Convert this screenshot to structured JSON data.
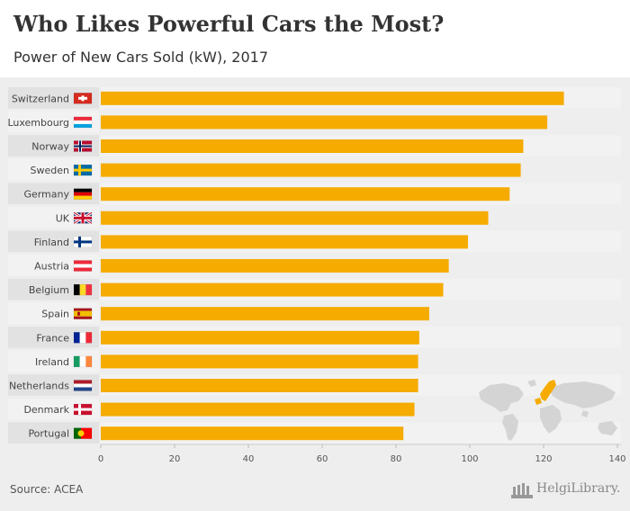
{
  "header": {
    "title": "Who Likes Powerful Cars the Most?",
    "subtitle": "Power of New Cars Sold (kW), 2017"
  },
  "footer": {
    "source": "Source: ACEA",
    "brand": "HelgiLibrary."
  },
  "colors": {
    "bar": "#f5ab00",
    "band_dark": "#e2e2e2",
    "band_light": "#f2f2f2",
    "background": "#eeeeee",
    "map_land": "#d4d4d4",
    "map_highlight": "#f5ab00"
  },
  "icons": {
    "brand_logo": "library-columns-icon",
    "map": "world-map-icon"
  },
  "chart_data": {
    "type": "bar",
    "orientation": "horizontal",
    "title": "Who Likes Powerful Cars the Most?",
    "subtitle": "Power of New Cars Sold (kW), 2017",
    "xlabel": "",
    "ylabel": "",
    "categories": [
      "Switzerland",
      "Luxembourg",
      "Norway",
      "Sweden",
      "Germany",
      "UK",
      "Finland",
      "Austria",
      "Belgium",
      "Spain",
      "France",
      "Ireland",
      "Netherlands",
      "Denmark",
      "Portugal"
    ],
    "values": [
      125.5,
      121,
      114.5,
      113.8,
      110.8,
      105,
      99.5,
      94.3,
      92.8,
      89,
      86.3,
      86,
      86,
      85,
      82
    ],
    "xlim": [
      0,
      140
    ],
    "xticks": [
      "0",
      "20",
      "40",
      "60",
      "80",
      "100",
      "120",
      "140"
    ],
    "flags": [
      "ch",
      "lu",
      "no",
      "se",
      "de",
      "gb",
      "fi",
      "at",
      "be",
      "es",
      "fr",
      "ie",
      "nl",
      "dk",
      "pt"
    ],
    "grid": false,
    "legend": "none"
  }
}
